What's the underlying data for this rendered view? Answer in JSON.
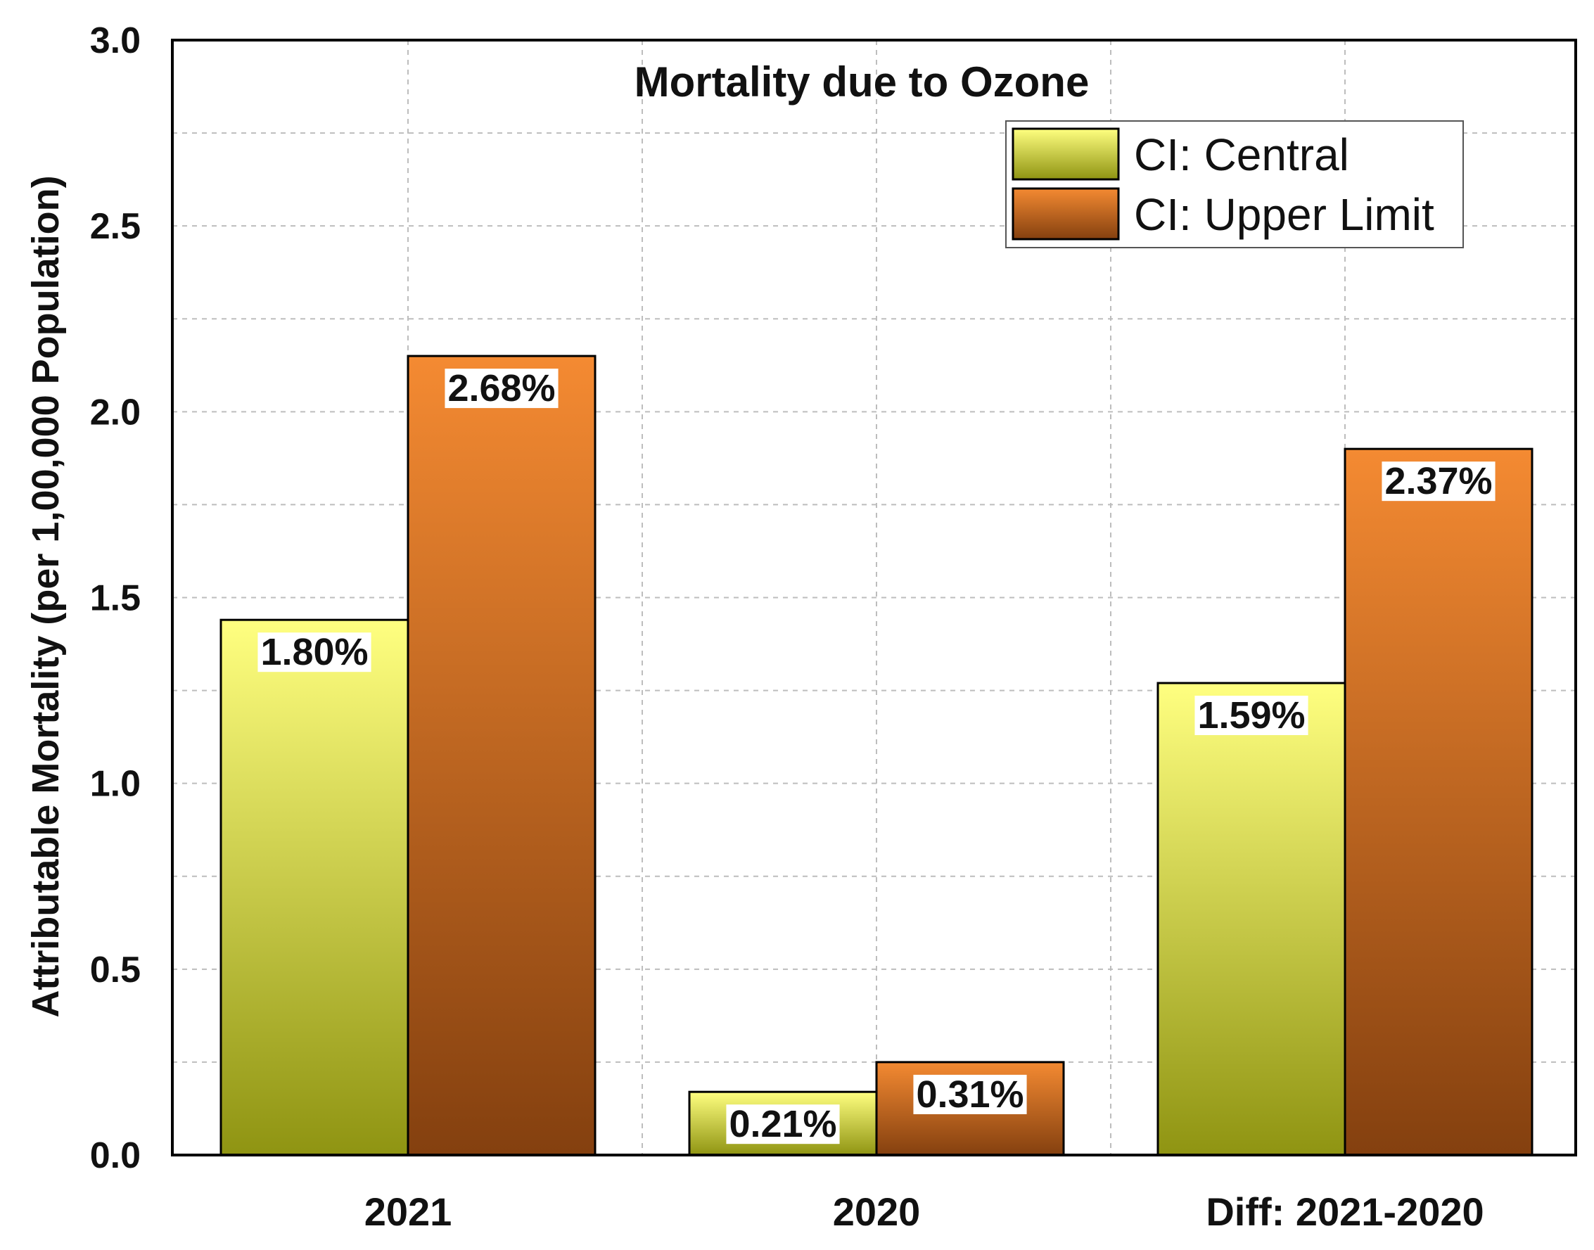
{
  "chart_data": {
    "type": "bar",
    "title": "Mortality due to Ozone",
    "ylabel": "Attributable Mortality (per 1,00,000 Population)",
    "xlabel": "",
    "ylim": [
      0,
      3.0
    ],
    "yticks": [
      "0.0",
      "0.5",
      "1.0",
      "1.5",
      "2.0",
      "2.5",
      "3.0"
    ],
    "grid": true,
    "legend_position": "top-right",
    "categories": [
      "2021",
      "2020",
      "Diff: 2021-2020"
    ],
    "series": [
      {
        "name": "CI: Central",
        "values": [
          1.44,
          0.17,
          1.27
        ],
        "data_labels": [
          "1.80%",
          "0.21%",
          "1.59%"
        ],
        "color_top": "#ffff80",
        "color_bottom": "#8f9412"
      },
      {
        "name": "CI: Upper Limit",
        "values": [
          2.15,
          0.25,
          1.9
        ],
        "data_labels": [
          "2.68%",
          "0.31%",
          "2.37%"
        ],
        "color_top": "#f48a32",
        "color_bottom": "#84400f"
      }
    ]
  }
}
